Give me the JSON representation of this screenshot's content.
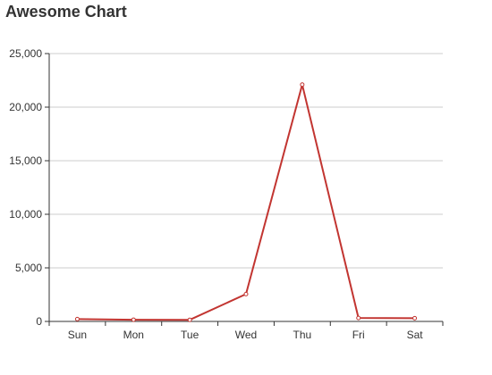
{
  "chart_data": {
    "type": "line",
    "title": "Awesome Chart",
    "categories": [
      "Sun",
      "Mon",
      "Tue",
      "Wed",
      "Thu",
      "Fri",
      "Sat"
    ],
    "series": [
      {
        "values": [
          220,
          160,
          150,
          2550,
          22100,
          320,
          300
        ],
        "color": "#c23531"
      }
    ],
    "ylim": [
      0,
      25000
    ],
    "yticks": [
      0,
      5000,
      10000,
      15000,
      20000,
      25000
    ],
    "ytick_labels": [
      "0",
      "5,000",
      "10,000",
      "15,000",
      "20,000",
      "25,000"
    ],
    "grid": true,
    "legend": "none"
  }
}
